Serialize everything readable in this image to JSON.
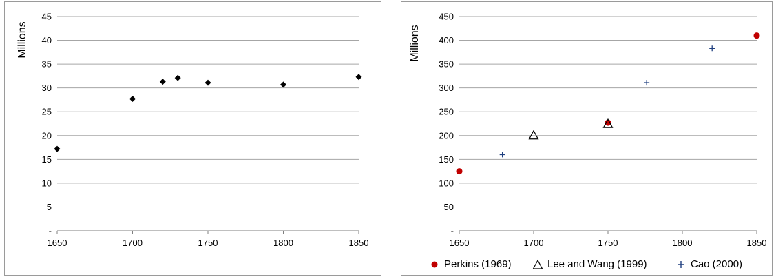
{
  "chart_data": [
    {
      "type": "scatter",
      "ylabel": "Millions",
      "xlim": [
        1650,
        1850
      ],
      "ylim": [
        0,
        45
      ],
      "xticks": [
        "1650",
        "1700",
        "1750",
        "1800",
        "1850"
      ],
      "yticks": [
        "-",
        "5",
        "10",
        "15",
        "20",
        "25",
        "30",
        "35",
        "40",
        "45"
      ],
      "grid": "horizontal",
      "series": [
        {
          "marker": "diamond",
          "color": "#000000",
          "points": [
            {
              "x": 1650,
              "y": 17.2
            },
            {
              "x": 1700,
              "y": 27.7
            },
            {
              "x": 1720,
              "y": 31.3
            },
            {
              "x": 1730,
              "y": 32.1
            },
            {
              "x": 1750,
              "y": 31.1
            },
            {
              "x": 1800,
              "y": 30.7
            },
            {
              "x": 1850,
              "y": 32.3
            }
          ]
        }
      ]
    },
    {
      "type": "scatter",
      "ylabel": "Millions",
      "xlim": [
        1650,
        1850
      ],
      "ylim": [
        0,
        450
      ],
      "xticks": [
        "1650",
        "1700",
        "1750",
        "1800",
        "1850"
      ],
      "yticks": [
        "-",
        "50",
        "100",
        "150",
        "200",
        "250",
        "300",
        "350",
        "400",
        "450"
      ],
      "grid": "horizontal",
      "legend": "bottom",
      "series": [
        {
          "name": "Perkins (1969)",
          "marker": "circle",
          "color": "#c00000",
          "points": [
            {
              "x": 1650,
              "y": 125
            },
            {
              "x": 1750,
              "y": 227
            },
            {
              "x": 1850,
              "y": 410
            }
          ]
        },
        {
          "name": "Lee and Wang (1999)",
          "marker": "triangle",
          "color": "#000000",
          "points": [
            {
              "x": 1700,
              "y": 200
            },
            {
              "x": 1750,
              "y": 224
            }
          ]
        },
        {
          "name": "Cao (2000)",
          "marker": "plus",
          "color": "#1f3f7f",
          "points": [
            {
              "x": 1679,
              "y": 160
            },
            {
              "x": 1776,
              "y": 311
            },
            {
              "x": 1820,
              "y": 383
            }
          ]
        }
      ]
    }
  ]
}
